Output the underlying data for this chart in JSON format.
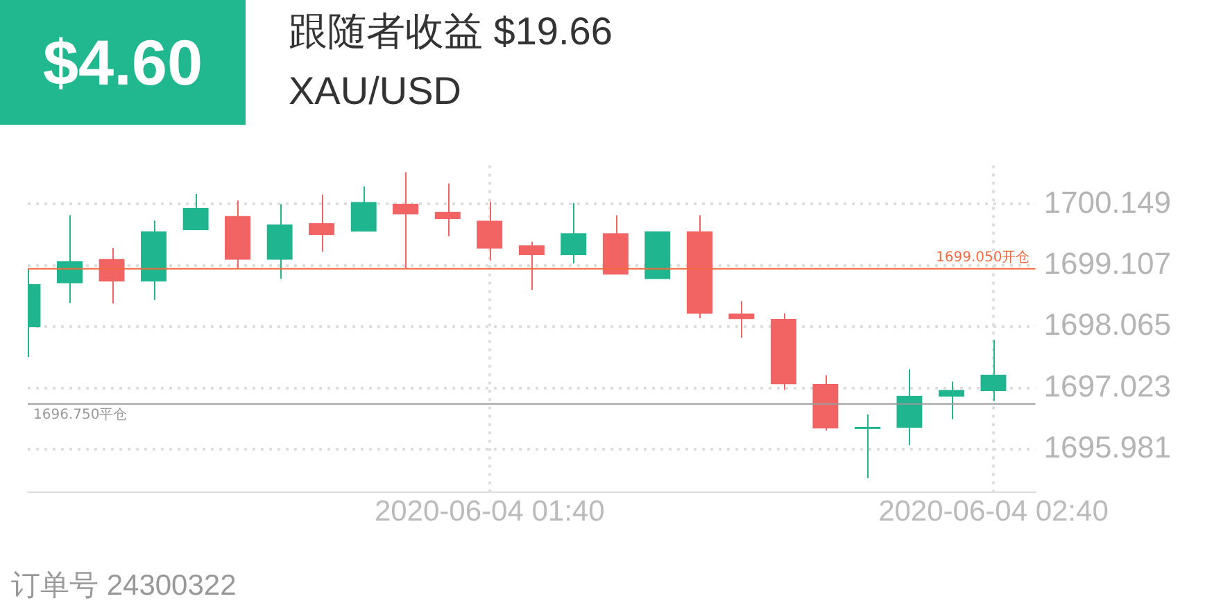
{
  "chart_data": {
    "type": "candlestick",
    "title": "XAU/USD",
    "annotations": [
      "$4.60",
      "跟随者收益 $19.66",
      "订单号 24300322"
    ],
    "x": [
      "2020-06-04T00:45",
      "2020-06-04T00:50",
      "2020-06-04T00:55",
      "2020-06-04T01:00",
      "2020-06-04T01:05",
      "2020-06-04T01:10",
      "2020-06-04T01:15",
      "2020-06-04T01:20",
      "2020-06-04T01:25",
      "2020-06-04T01:30",
      "2020-06-04T01:35",
      "2020-06-04T01:40",
      "2020-06-04T01:45",
      "2020-06-04T01:50",
      "2020-06-04T01:55",
      "2020-06-04T02:00",
      "2020-06-04T02:05",
      "2020-06-04T02:10",
      "2020-06-04T02:15",
      "2020-06-04T02:20",
      "2020-06-04T02:25",
      "2020-06-04T02:30",
      "2020-06-04T02:35",
      "2020-06-04T02:40"
    ],
    "ohlc": [
      [
        1698.06,
        1699.05,
        1697.55,
        1698.78
      ],
      [
        1698.81,
        1699.96,
        1698.47,
        1699.17
      ],
      [
        1699.21,
        1699.4,
        1698.46,
        1698.84
      ],
      [
        1698.84,
        1699.87,
        1698.52,
        1699.68
      ],
      [
        1699.71,
        1700.32,
        1699.71,
        1700.08
      ],
      [
        1699.94,
        1700.21,
        1699.06,
        1699.21
      ],
      [
        1699.21,
        1700.15,
        1698.88,
        1699.8
      ],
      [
        1699.82,
        1700.31,
        1699.34,
        1699.63
      ],
      [
        1699.69,
        1700.45,
        1699.69,
        1700.18
      ],
      [
        1700.15,
        1700.69,
        1699.05,
        1699.98
      ],
      [
        1700.01,
        1700.5,
        1699.6,
        1699.9
      ],
      [
        1699.86,
        1700.19,
        1699.19,
        1699.4
      ],
      [
        1699.44,
        1699.51,
        1698.69,
        1699.29
      ],
      [
        1699.29,
        1700.17,
        1699.14,
        1699.65
      ],
      [
        1699.65,
        1699.96,
        1698.96,
        1698.96
      ],
      [
        1698.88,
        1699.68,
        1698.88,
        1699.68
      ],
      [
        1699.68,
        1699.96,
        1698.21,
        1698.29
      ],
      [
        1698.28,
        1698.5,
        1697.88,
        1698.2
      ],
      [
        1698.19,
        1698.29,
        1696.99,
        1697.09
      ],
      [
        1697.08,
        1697.24,
        1696.3,
        1696.34
      ],
      [
        1696.33,
        1696.57,
        1695.49,
        1696.35
      ],
      [
        1696.35,
        1697.34,
        1696.05,
        1696.88
      ],
      [
        1696.88,
        1697.13,
        1696.49,
        1696.98
      ],
      [
        1696.98,
        1697.84,
        1696.8,
        1697.24
      ]
    ],
    "colors": [
      "#1fb58f",
      "#1fb58f",
      "#f26463",
      "#1fb58f",
      "#1fb58f",
      "#f26463",
      "#1fb58f",
      "#f26463",
      "#1fb58f",
      "#f26463",
      "#f26463",
      "#f26463",
      "#f26463",
      "#1fb58f",
      "#f26463",
      "#1fb58f",
      "#f26463",
      "#f26463",
      "#f26463",
      "#f26463",
      "#1fb58f",
      "#1fb58f",
      "#1fb58f",
      "#1fb58f"
    ],
    "xlim": [
      "2020-06-04T00:45",
      "2020-06-04T02:45"
    ],
    "xticks": [
      {
        "value": "2020-06-04T01:40",
        "label": "2020-06-04 01:40"
      },
      {
        "value": "2020-06-04T02:40",
        "label": "2020-06-04 02:40"
      }
    ],
    "ylim": [
      1695.25,
      1700.81
    ],
    "yticks": [
      1695.981,
      1697.023,
      1698.065,
      1699.107,
      1700.149
    ],
    "grid": true,
    "ref_lines": [
      {
        "axis": "y",
        "value": 1699.05,
        "label": "1699.050开仓",
        "color": "#f26a3d"
      },
      {
        "axis": "y",
        "value": 1696.75,
        "label": "1696.750平仓",
        "color": "#9a9a9a"
      }
    ]
  }
}
